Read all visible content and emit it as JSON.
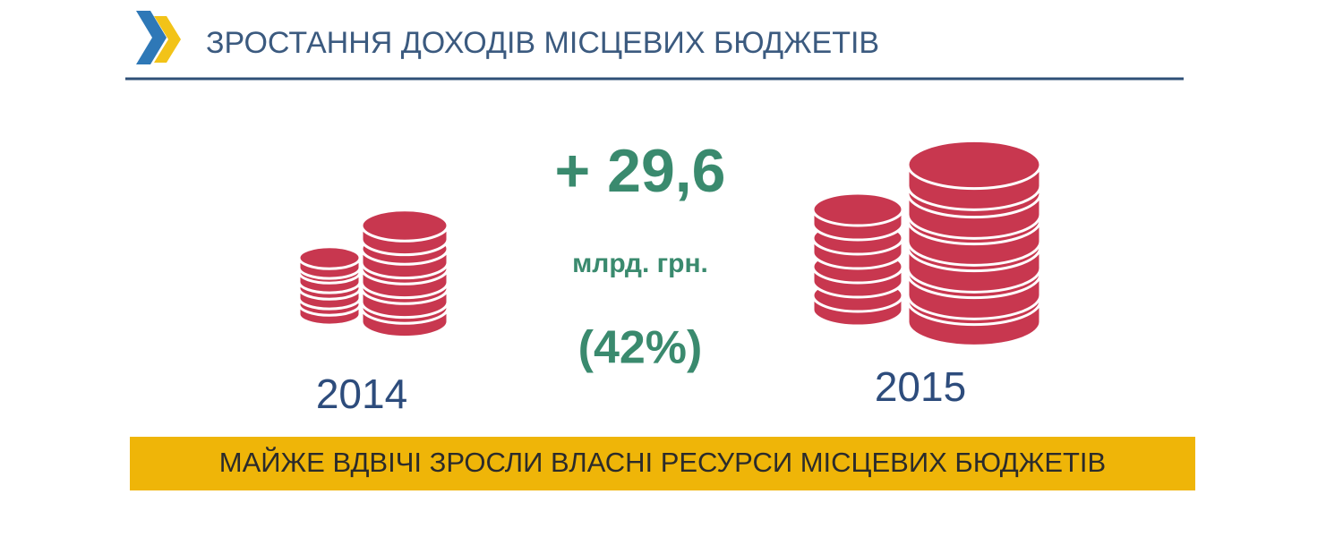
{
  "header": {
    "title": "ЗРОСТАННЯ ДОХОДІВ МІСЦЕВИХ БЮДЖЕТІВ"
  },
  "growth": {
    "amount": "+ 29,6",
    "unit": "млрд. грн.",
    "percent": "(42%)"
  },
  "years": [
    "2014",
    "2015"
  ],
  "banner": "МАЙЖЕ ВДВІЧІ ЗРОСЛИ ВЛАСНІ РЕСУРСИ МІСЦЕВИХ БЮДЖЕТІВ"
}
